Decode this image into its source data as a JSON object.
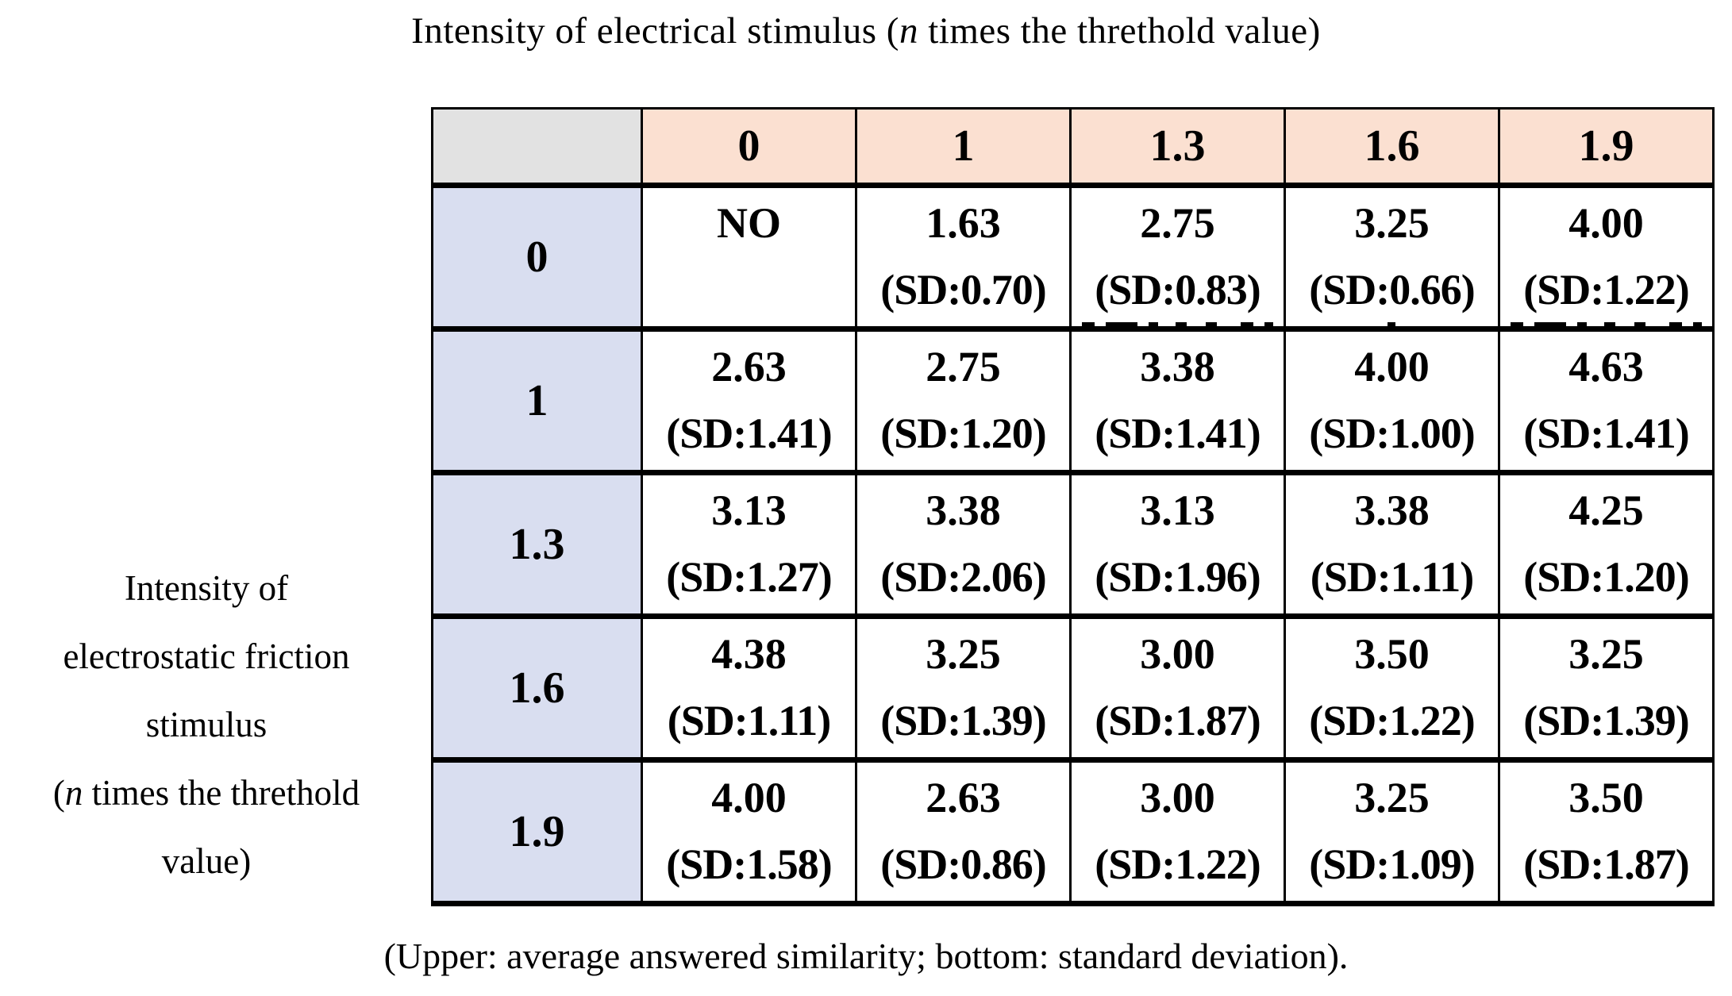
{
  "colors": {
    "column_header_bg": "#fbe0d1",
    "row_header_bg": "#d9def0",
    "corner_bg": "#e2e2e2",
    "border": "#000000",
    "text": "#000000",
    "page_bg": "#ffffff"
  },
  "title": {
    "prefix": "Intensity of electrical stimulus (",
    "italic_var": "n",
    "suffix": " times the threthold value)"
  },
  "side_label": {
    "line1": "Intensity of",
    "line2": "electrostatic friction",
    "line3": "stimulus",
    "line4_prefix": "(",
    "line4_italic_var": "n",
    "line4_suffix": " times the threthold",
    "line5": "value)"
  },
  "caption": "(Upper: average answered similarity; bottom: standard deviation).",
  "table": {
    "corner_label": "",
    "column_headers": [
      "0",
      "1",
      "1.3",
      "1.6",
      "1.9"
    ],
    "rows": [
      {
        "header": "0",
        "cells": [
          {
            "value": "NO",
            "sd": ""
          },
          {
            "value": "1.63",
            "sd": "(SD:0.70)"
          },
          {
            "value": "2.75",
            "sd": "(SD:0.83)"
          },
          {
            "value": "3.25",
            "sd": "(SD:0.66)"
          },
          {
            "value": "4.00",
            "sd": "(SD:1.22)"
          }
        ]
      },
      {
        "header": "1",
        "cells": [
          {
            "value": "2.63",
            "sd": "(SD:1.41)"
          },
          {
            "value": "2.75",
            "sd": "(SD:1.20)"
          },
          {
            "value": "3.38",
            "sd": "(SD:1.41)"
          },
          {
            "value": "4.00",
            "sd": "(SD:1.00)"
          },
          {
            "value": "4.63",
            "sd": "(SD:1.41)"
          }
        ]
      },
      {
        "header": "1.3",
        "cells": [
          {
            "value": "3.13",
            "sd": "(SD:1.27)"
          },
          {
            "value": "3.38",
            "sd": "(SD:2.06)"
          },
          {
            "value": "3.13",
            "sd": "(SD:1.96)"
          },
          {
            "value": "3.38",
            "sd": "(SD:1.11)"
          },
          {
            "value": "4.25",
            "sd": "(SD:1.20)"
          }
        ]
      },
      {
        "header": "1.6",
        "cells": [
          {
            "value": "4.38",
            "sd": "(SD:1.11)"
          },
          {
            "value": "3.25",
            "sd": "(SD:1.39)"
          },
          {
            "value": "3.00",
            "sd": "(SD:1.87)"
          },
          {
            "value": "3.50",
            "sd": "(SD:1.22)"
          },
          {
            "value": "3.25",
            "sd": "(SD:1.39)"
          }
        ]
      },
      {
        "header": "1.9",
        "cells": [
          {
            "value": "4.00",
            "sd": "(SD:1.58)"
          },
          {
            "value": "2.63",
            "sd": "(SD:0.86)"
          },
          {
            "value": "3.00",
            "sd": "(SD:1.22)"
          },
          {
            "value": "3.25",
            "sd": "(SD:1.09)"
          },
          {
            "value": "3.50",
            "sd": "(SD:1.87)"
          }
        ]
      }
    ]
  }
}
